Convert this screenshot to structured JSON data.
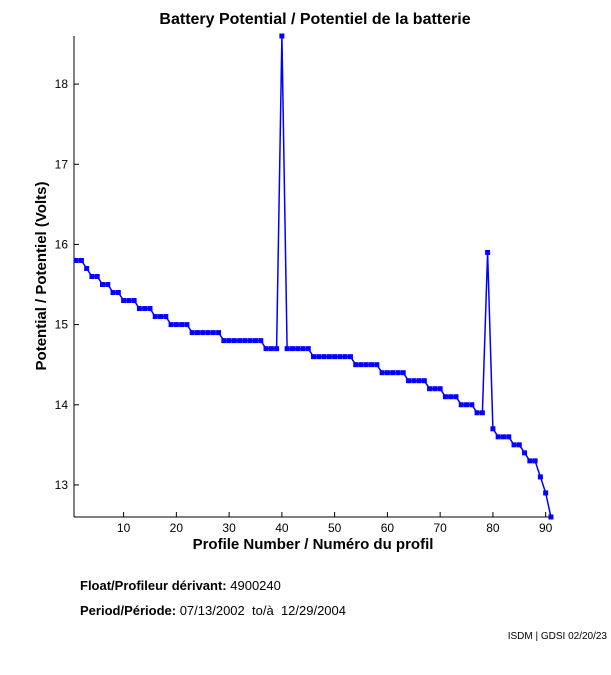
{
  "chart_data": {
    "type": "line",
    "title": "Battery Potential / Potentiel de la batterie",
    "xlabel": "Profile Number / Numéro du profil",
    "ylabel": "Potential / Potentiel (Volts)",
    "xlim": [
      0.6,
      91.2
    ],
    "ylim": [
      12.6,
      18.6
    ],
    "xticks": [
      10,
      20,
      30,
      40,
      50,
      60,
      70,
      80,
      90
    ],
    "yticks": [
      13,
      14,
      15,
      16,
      17,
      18
    ],
    "grid": false,
    "color": "#0000ff",
    "x": [
      1,
      2,
      3,
      4,
      5,
      6,
      7,
      8,
      9,
      10,
      11,
      12,
      13,
      14,
      15,
      16,
      17,
      18,
      19,
      20,
      21,
      22,
      23,
      24,
      25,
      26,
      27,
      28,
      29,
      30,
      31,
      32,
      33,
      34,
      35,
      36,
      37,
      38,
      39,
      40,
      41,
      42,
      43,
      44,
      45,
      46,
      47,
      48,
      49,
      50,
      51,
      52,
      53,
      54,
      55,
      56,
      57,
      58,
      59,
      60,
      61,
      62,
      63,
      64,
      65,
      66,
      67,
      68,
      69,
      70,
      71,
      72,
      73,
      74,
      75,
      76,
      77,
      78,
      79,
      80,
      81,
      82,
      83,
      84,
      85,
      86,
      87,
      88,
      89,
      90,
      91
    ],
    "y": [
      15.8,
      15.8,
      15.7,
      15.6,
      15.6,
      15.5,
      15.5,
      15.4,
      15.4,
      15.3,
      15.3,
      15.3,
      15.2,
      15.2,
      15.2,
      15.1,
      15.1,
      15.1,
      15.0,
      15.0,
      15.0,
      15.0,
      14.9,
      14.9,
      14.9,
      14.9,
      14.9,
      14.9,
      14.8,
      14.8,
      14.8,
      14.8,
      14.8,
      14.8,
      14.8,
      14.8,
      14.7,
      14.7,
      14.7,
      18.6,
      14.7,
      14.7,
      14.7,
      14.7,
      14.7,
      14.6,
      14.6,
      14.6,
      14.6,
      14.6,
      14.6,
      14.6,
      14.6,
      14.5,
      14.5,
      14.5,
      14.5,
      14.5,
      14.4,
      14.4,
      14.4,
      14.4,
      14.4,
      14.3,
      14.3,
      14.3,
      14.3,
      14.2,
      14.2,
      14.2,
      14.1,
      14.1,
      14.1,
      14.0,
      14.0,
      14.0,
      13.9,
      13.9,
      15.9,
      13.7,
      13.6,
      13.6,
      13.6,
      13.5,
      13.5,
      13.4,
      13.3,
      13.3,
      13.1,
      12.9,
      12.6
    ]
  },
  "info": {
    "float_label": "Float/Profileur dérivant:",
    "float_value": "4900240",
    "period_label": "Period/Période:",
    "period_start": "07/13/2002",
    "period_sep": "to/à",
    "period_end": "12/29/2004"
  },
  "credit": "ISDM | GDSI 02/20/23"
}
